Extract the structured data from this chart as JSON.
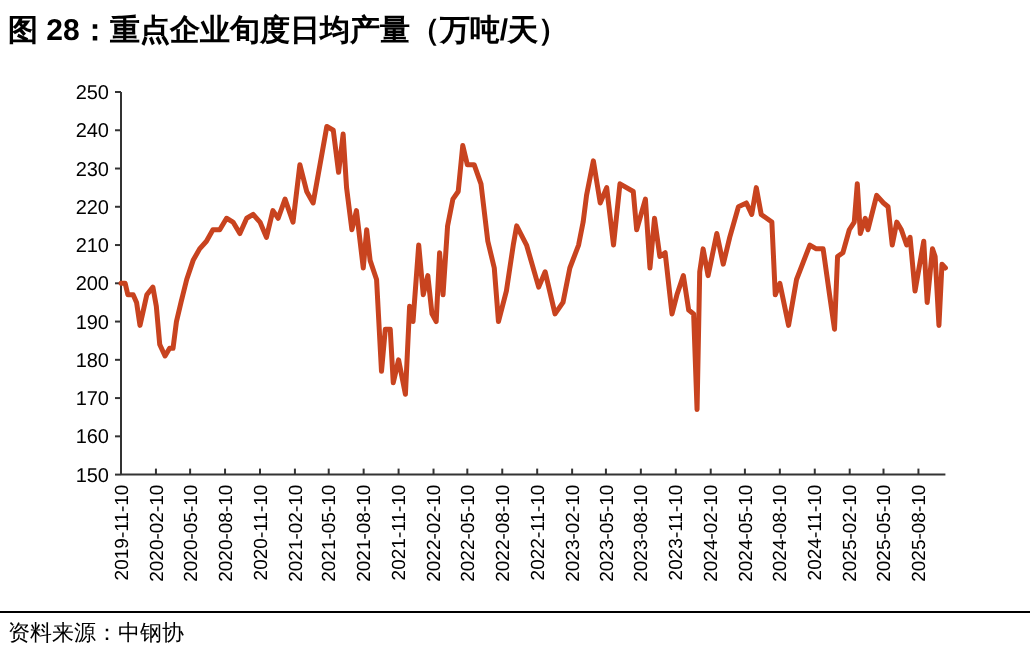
{
  "chart_data": {
    "type": "line",
    "title": "图 28：重点企业旬度日均产量（万吨/天）",
    "annotations": [
      "资料来源：中钢协"
    ],
    "color": "#c8431f",
    "xlim": [
      "2019-11-10",
      "2025-10-20"
    ],
    "ylim": [
      150,
      250
    ],
    "yticks": [
      150,
      160,
      170,
      180,
      190,
      200,
      210,
      220,
      230,
      240,
      250
    ],
    "xticks": [
      "2019-11-10",
      "2020-02-10",
      "2020-05-10",
      "2020-08-10",
      "2020-11-10",
      "2021-02-10",
      "2021-05-10",
      "2021-08-10",
      "2021-11-10",
      "2022-02-10",
      "2022-05-10",
      "2022-08-10",
      "2022-11-10",
      "2023-02-10",
      "2023-05-10",
      "2023-08-10",
      "2023-11-10",
      "2024-02-10",
      "2024-05-10",
      "2024-08-10",
      "2024-11-10",
      "2025-02-10",
      "2025-05-10",
      "2025-08-10"
    ],
    "x": [
      "2019-11-10",
      "2019-11-21",
      "2019-11-28",
      "2019-12-12",
      "2019-12-21",
      "2019-12-30",
      "2020-01-08",
      "2020-01-17",
      "2020-02-02",
      "2020-02-11",
      "2020-02-20",
      "2020-03-05",
      "2020-03-17",
      "2020-03-26",
      "2020-04-04",
      "2020-04-16",
      "2020-05-01",
      "2020-05-18",
      "2020-06-04",
      "2020-06-22",
      "2020-07-09",
      "2020-07-27",
      "2020-08-14",
      "2020-08-31",
      "2020-09-18",
      "2020-10-06",
      "2020-10-23",
      "2020-11-10",
      "2020-11-27",
      "2020-12-14",
      "2020-12-28",
      "2021-01-15",
      "2021-02-05",
      "2021-02-23",
      "2021-03-13",
      "2021-03-30",
      "2021-04-17",
      "2021-05-05",
      "2021-05-22",
      "2021-06-05",
      "2021-06-17",
      "2021-06-26",
      "2021-07-10",
      "2021-07-22",
      "2021-08-09",
      "2021-08-18",
      "2021-08-27",
      "2021-09-13",
      "2021-09-26",
      "2021-10-06",
      "2021-10-19",
      "2021-10-27",
      "2021-11-10",
      "2021-11-28",
      "2021-12-09",
      "2021-12-18",
      "2022-01-02",
      "2022-01-14",
      "2022-01-26",
      "2022-02-06",
      "2022-02-17",
      "2022-02-26",
      "2022-03-07",
      "2022-03-19",
      "2022-04-02",
      "2022-04-16",
      "2022-04-28",
      "2022-05-10",
      "2022-05-28",
      "2022-06-15",
      "2022-07-03",
      "2022-07-20",
      "2022-07-31",
      "2022-08-21",
      "2022-09-08",
      "2022-09-17",
      "2022-10-13",
      "2022-11-14",
      "2022-12-01",
      "2022-12-27",
      "2023-01-17",
      "2023-02-04",
      "2023-02-27",
      "2023-03-11",
      "2023-03-20",
      "2023-04-07",
      "2023-04-25",
      "2023-05-12",
      "2023-05-30",
      "2023-06-16",
      "2023-07-21",
      "2023-07-30",
      "2023-08-22",
      "2023-09-03",
      "2023-09-15",
      "2023-09-29",
      "2023-10-13",
      "2023-10-31",
      "2023-11-13",
      "2023-11-30",
      "2023-12-14",
      "2023-12-27",
      "2024-01-05",
      "2024-01-12",
      "2024-01-21",
      "2024-02-03",
      "2024-02-26",
      "2024-03-14",
      "2024-03-31",
      "2024-04-23",
      "2024-05-14",
      "2024-05-28",
      "2024-06-09",
      "2024-06-22",
      "2024-07-20",
      "2024-07-29",
      "2024-08-10",
      "2024-09-02",
      "2024-09-23",
      "2024-10-28",
      "2024-11-14",
      "2024-12-02",
      "2024-12-19",
      "2025-01-01",
      "2025-01-09",
      "2025-01-23",
      "2025-02-09",
      "2025-02-22",
      "2025-03-02",
      "2025-03-10",
      "2025-03-23",
      "2025-03-30",
      "2025-04-22",
      "2025-05-10",
      "2025-05-22",
      "2025-06-02",
      "2025-06-14",
      "2025-06-26",
      "2025-07-10",
      "2025-07-19",
      "2025-08-01",
      "2025-08-24",
      "2025-09-02",
      "2025-09-16",
      "2025-09-23",
      "2025-10-03",
      "2025-10-11",
      "2025-10-20"
    ],
    "values": [
      200,
      200,
      197,
      197,
      195,
      189,
      193,
      197,
      199,
      194,
      184,
      181,
      183,
      183,
      190,
      195,
      201,
      206,
      209,
      211,
      214,
      214,
      217,
      216,
      213,
      217,
      218,
      216,
      212,
      219,
      217,
      222,
      216,
      231,
      224,
      221,
      231,
      241,
      240,
      229,
      239,
      225,
      214,
      219,
      204,
      214,
      206,
      201,
      177,
      188,
      188,
      174,
      180,
      171,
      194,
      190,
      210,
      197,
      202,
      192,
      190,
      208,
      197,
      215,
      222,
      224,
      236,
      231,
      231,
      226,
      211,
      204,
      190,
      198,
      210,
      215,
      210,
      199,
      203,
      192,
      195,
      204,
      210,
      216,
      223,
      232,
      221,
      225,
      210,
      226,
      224,
      214,
      222,
      204,
      217,
      207,
      208,
      192,
      197,
      202,
      193,
      192,
      167,
      203,
      209,
      202,
      213,
      205,
      212,
      220,
      221,
      218,
      225,
      218,
      216,
      197,
      200,
      189,
      201,
      210,
      209,
      209,
      197,
      188,
      207,
      208,
      214,
      216,
      226,
      213,
      217,
      214,
      223,
      221,
      220,
      210,
      216,
      214,
      210,
      212,
      198,
      211,
      195,
      209,
      207,
      189,
      205,
      204
    ]
  }
}
